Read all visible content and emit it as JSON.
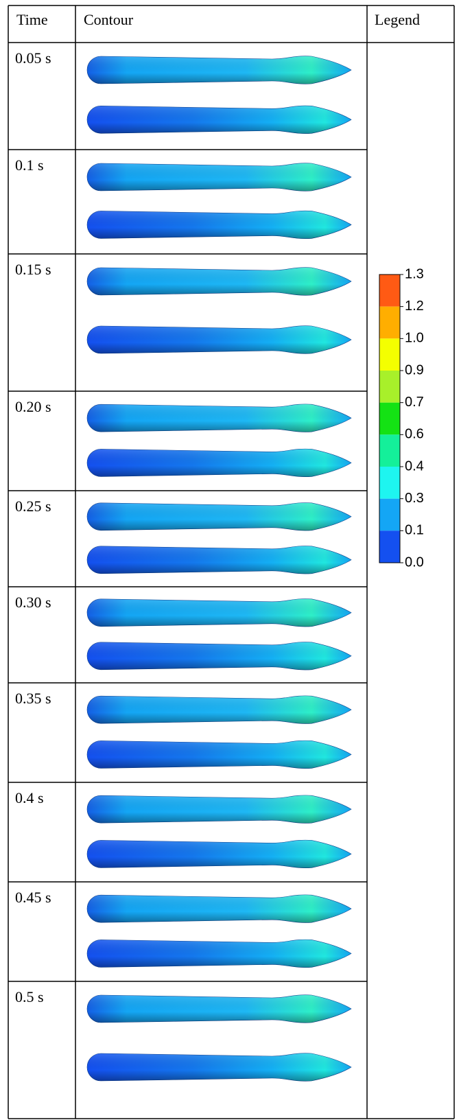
{
  "header": {
    "time": "Time",
    "contour": "Contour",
    "legend": "Legend"
  },
  "rows": [
    {
      "time": "0.05 s"
    },
    {
      "time": "0.1 s"
    },
    {
      "time": "0.15 s"
    },
    {
      "time": "0.20 s"
    },
    {
      "time": "0.25 s"
    },
    {
      "time": "0.30 s"
    },
    {
      "time": "0.35 s"
    },
    {
      "time": "0.4 s"
    },
    {
      "time": "0.45 s"
    },
    {
      "time": "0.5 s"
    }
  ],
  "legend": {
    "labels": [
      "1.3",
      "1.2",
      "1.0",
      "0.9",
      "0.7",
      "0.6",
      "0.4",
      "0.3",
      "0.1",
      "0.0"
    ],
    "colors": [
      "#ff5a14",
      "#ffae00",
      "#f4ff00",
      "#a8f02a",
      "#14e214",
      "#14f09a",
      "#1ef5f0",
      "#14a6f5",
      "#1450f0"
    ]
  }
}
